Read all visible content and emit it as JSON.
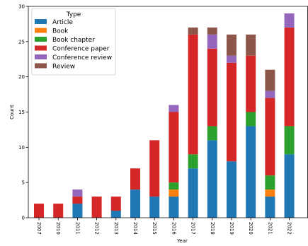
{
  "chart_data": {
    "type": "bar",
    "stacked": true,
    "categories": [
      "2007",
      "2010",
      "2011",
      "2012",
      "2013",
      "2014",
      "2015",
      "2016",
      "2017",
      "2018",
      "2019",
      "2020",
      "2021",
      "2022"
    ],
    "series": [
      {
        "name": "Article",
        "color": "#1f77b4",
        "values": [
          0,
          0,
          2,
          0,
          1,
          4,
          3,
          3,
          7,
          11,
          8,
          13,
          3,
          9
        ]
      },
      {
        "name": "Book",
        "color": "#ff7f0e",
        "values": [
          0,
          0,
          0,
          0,
          0,
          0,
          0,
          1,
          0,
          0,
          0,
          0,
          1,
          0
        ]
      },
      {
        "name": "Book chapter",
        "color": "#2ca02c",
        "values": [
          0,
          0,
          0,
          0,
          0,
          0,
          0,
          1,
          2,
          2,
          0,
          2,
          2,
          4
        ]
      },
      {
        "name": "Conference paper",
        "color": "#d62728",
        "values": [
          2,
          2,
          1,
          3,
          2,
          3,
          8,
          10,
          17,
          11,
          14,
          8,
          11,
          14
        ]
      },
      {
        "name": "Conference review",
        "color": "#9467bd",
        "values": [
          0,
          0,
          1,
          0,
          0,
          0,
          0,
          1,
          0,
          2,
          1,
          0,
          1,
          2
        ]
      },
      {
        "name": "Review",
        "color": "#8c564b",
        "values": [
          0,
          0,
          0,
          0,
          0,
          0,
          0,
          0,
          1,
          1,
          3,
          3,
          3,
          0
        ]
      }
    ],
    "title": "",
    "xlabel": "Year",
    "ylabel": "Count",
    "ylim": [
      0,
      30
    ],
    "yticks": [
      0,
      5,
      10,
      15,
      20,
      25,
      30
    ],
    "legend": {
      "title": "Type",
      "position": "top-left"
    },
    "grid": false
  }
}
